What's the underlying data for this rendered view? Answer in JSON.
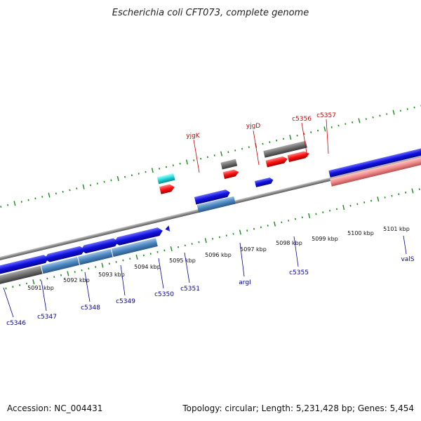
{
  "title": "Escherichia coli CFT073, complete genome",
  "footer": {
    "accession": "Accession: NC_004431",
    "topology": "Topology: circular; Length: 5,231,428 bp; Genes: 5,454"
  },
  "axis_labels": [
    "5091 kbp",
    "5092 kbp",
    "5093 kbp",
    "5094 kbp",
    "5095 kbp",
    "5096 kbp",
    "5097 kbp",
    "5098 kbp",
    "5099 kbp",
    "5100 kbp",
    "5101 kbp"
  ],
  "genes_top": [
    "yjgK",
    "yjgD",
    "c5356",
    "c5357"
  ],
  "genes_bottom": [
    "c5346",
    "c5347",
    "c5348",
    "c5349",
    "c5350",
    "c5351",
    "argI",
    "c5355",
    "valS"
  ],
  "colors": {
    "forward": "#1010e0",
    "pseudo": "#6f6f6f",
    "rna": "#ff1010",
    "tick": "#1a8a1a",
    "label_top": "#cc0000",
    "label_bottom": "#000099"
  }
}
